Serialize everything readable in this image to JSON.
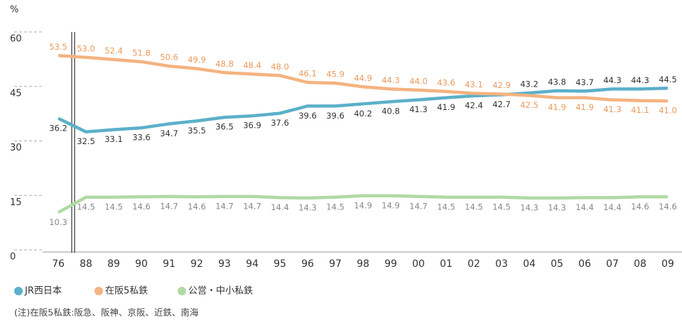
{
  "chart_data": {
    "type": "line",
    "y_label": "%",
    "note": "(注)在阪5私鉄:阪急、阪神、京阪、近鉄、南海",
    "categories": [
      "76",
      "88",
      "89",
      "90",
      "91",
      "92",
      "93",
      "94",
      "95",
      "96",
      "97",
      "98",
      "99",
      "00",
      "01",
      "02",
      "03",
      "04",
      "05",
      "06",
      "07",
      "08",
      "09"
    ],
    "ylim": [
      0,
      60
    ],
    "yticks": [
      0,
      15,
      30,
      45,
      60
    ],
    "legend": "bottom-left",
    "series": [
      {
        "name": "JR西日本",
        "color": "#5bb0c9",
        "label_color": "#333333",
        "values": [
          36.2,
          32.5,
          33.1,
          33.6,
          34.7,
          35.5,
          36.5,
          36.9,
          37.6,
          39.6,
          39.6,
          40.2,
          40.8,
          41.3,
          41.9,
          42.4,
          42.7,
          43.2,
          43.8,
          43.7,
          44.3,
          44.3,
          44.5
        ],
        "value_labels": [
          "36.2",
          "32.5",
          "33.1",
          "33.6",
          "34.7",
          "35.5",
          "36.5",
          "36.9",
          "37.6",
          "39.6",
          "39.6",
          "40.2",
          "40.8",
          "41.3",
          "41.9",
          "42.4",
          "42.7",
          "43.2",
          "43.8",
          "43.7",
          "44.3",
          "44.3",
          "44.5"
        ]
      },
      {
        "name": "在阪5私鉄",
        "color": "#f4b381",
        "label_color": "#e99a5c",
        "values": [
          53.5,
          53.0,
          52.4,
          51.8,
          50.6,
          49.9,
          48.8,
          48.4,
          48.0,
          46.1,
          45.9,
          44.9,
          44.3,
          44.0,
          43.6,
          43.1,
          42.9,
          42.5,
          41.9,
          41.9,
          41.3,
          41.1,
          41.0
        ],
        "value_labels": [
          "53.5",
          "53.0",
          "52.4",
          "51.8",
          "50.6",
          "49.9",
          "48.8",
          "48.4",
          "48.0",
          "46.1",
          "45.9",
          "44.9",
          "44.3",
          "44.0",
          "43.6",
          "43.1",
          "42.9",
          "42.5",
          "41.9",
          "41.9",
          "41.3",
          "41.1",
          "41.0"
        ]
      },
      {
        "name": "公営・中小私鉄",
        "color": "#b0daa5",
        "label_color": "#888888",
        "values": [
          10.3,
          14.5,
          14.5,
          14.6,
          14.7,
          14.6,
          14.7,
          14.7,
          14.4,
          14.3,
          14.5,
          14.9,
          14.9,
          14.7,
          14.5,
          14.5,
          14.5,
          14.3,
          14.3,
          14.4,
          14.4,
          14.6,
          14.6
        ],
        "value_labels": [
          "10.3",
          "14.5",
          "14.5",
          "14.6",
          "14.7",
          "14.6",
          "14.7",
          "14.7",
          "14.4",
          "14.3",
          "14.5",
          "14.9",
          "14.9",
          "14.7",
          "14.5",
          "14.5",
          "14.5",
          "14.3",
          "14.3",
          "14.4",
          "14.4",
          "14.6",
          "14.6"
        ]
      }
    ]
  }
}
